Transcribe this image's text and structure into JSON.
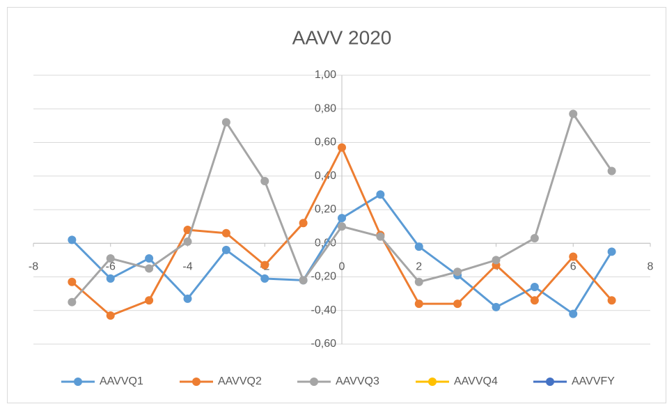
{
  "chart_data": {
    "type": "scatter",
    "title": "AAVV 2020",
    "x": [
      -7,
      -6,
      -5,
      -4,
      -3,
      -2,
      -1,
      0,
      1,
      2,
      3,
      4,
      5,
      6,
      7
    ],
    "series": [
      {
        "name": "AAVVQ1",
        "color": "#5b9bd5",
        "values": [
          0.02,
          -0.21,
          -0.09,
          -0.33,
          -0.04,
          -0.21,
          -0.22,
          0.15,
          0.29,
          -0.02,
          -0.19,
          -0.38,
          -0.26,
          -0.42,
          -0.05
        ]
      },
      {
        "name": "AAVVQ2",
        "color": "#ed7d31",
        "values": [
          -0.23,
          -0.43,
          -0.34,
          0.08,
          0.06,
          -0.13,
          0.12,
          0.57,
          0.05,
          -0.36,
          -0.36,
          -0.13,
          -0.34,
          -0.08,
          -0.34
        ]
      },
      {
        "name": "AAVVQ3",
        "color": "#a5a5a5",
        "values": [
          -0.35,
          -0.09,
          -0.15,
          0.01,
          0.72,
          0.37,
          -0.22,
          0.1,
          0.04,
          -0.23,
          -0.17,
          -0.1,
          0.03,
          0.77,
          0.43
        ]
      },
      {
        "name": "AAVVQ4",
        "color": "#ffc000",
        "values": [
          null,
          null,
          null,
          null,
          null,
          null,
          null,
          null,
          null,
          null,
          null,
          null,
          null,
          null,
          null
        ]
      },
      {
        "name": "AAVVFY",
        "color": "#4472c4",
        "values": [
          null,
          null,
          null,
          null,
          null,
          null,
          null,
          null,
          null,
          null,
          null,
          null,
          null,
          null,
          null
        ]
      }
    ],
    "xlim": [
      -8,
      8
    ],
    "xticks": [
      -8,
      -6,
      -4,
      -2,
      0,
      2,
      4,
      6,
      8
    ],
    "ylim": [
      -0.6,
      1.0
    ],
    "yticks": [
      {
        "value": -0.6,
        "label": "-0,60"
      },
      {
        "value": -0.4,
        "label": "-0,40"
      },
      {
        "value": -0.2,
        "label": "-0,20"
      },
      {
        "value": 0,
        "label": "0,00"
      },
      {
        "value": 0.2,
        "label": "0,20"
      },
      {
        "value": 0.4,
        "label": "0,40"
      },
      {
        "value": 0.6,
        "label": "0,60"
      },
      {
        "value": 0.8,
        "label": "0,80"
      },
      {
        "value": 1.0,
        "label": "1,00"
      }
    ],
    "grid": true,
    "legend": "bottom"
  }
}
